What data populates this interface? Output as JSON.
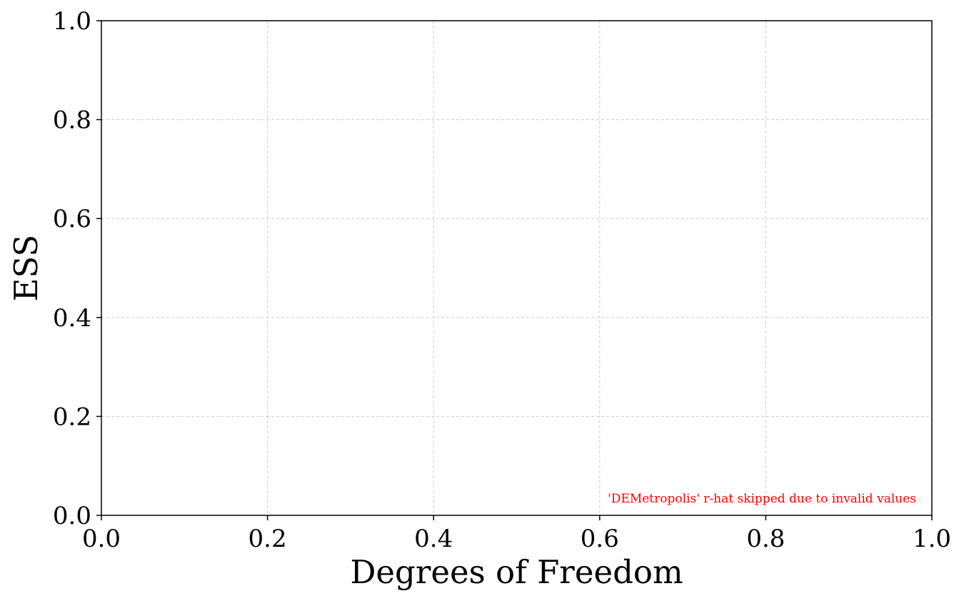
{
  "chart_data": {
    "type": "scatter",
    "title": "",
    "xlabel": "Degrees of Freedom",
    "ylabel": "ESS",
    "xlim": [
      0.0,
      1.0
    ],
    "ylim": [
      0.0,
      1.0
    ],
    "x_ticks": [
      "0.0",
      "0.2",
      "0.4",
      "0.6",
      "0.8",
      "1.0"
    ],
    "y_ticks": [
      "0.0",
      "0.2",
      "0.4",
      "0.6",
      "0.8",
      "1.0"
    ],
    "grid": true,
    "series": [],
    "annotation": {
      "text": "'DEMetropolis' r-hat skipped due to invalid values",
      "color": "#ff0000",
      "placement": "bottom-right"
    },
    "colors": {
      "grid": "#cccccc",
      "axes": "#000000"
    }
  }
}
